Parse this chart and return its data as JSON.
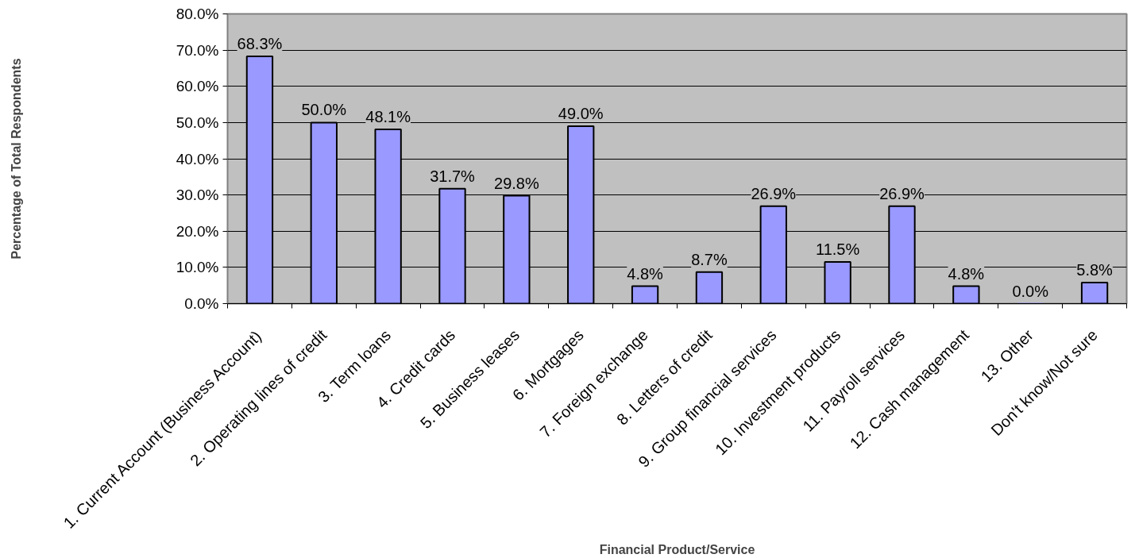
{
  "chart_data": {
    "type": "bar",
    "xlabel": "Financial Product/Service",
    "ylabel": "Percentage of Total Respondents",
    "categories": [
      "1. Current Account (Business Account)",
      "2. Operating lines of credit",
      "3. Term loans",
      "4. Credit cards",
      "5. Business leases",
      "6. Mortgages",
      "7. Foreign exchange",
      "8. Letters of credit",
      "9. Group financial services",
      "10. Investment products",
      "11. Payroll services",
      "12. Cash management",
      "13. Other",
      "Don't know/Not sure"
    ],
    "values": [
      68.3,
      50.0,
      48.1,
      31.7,
      29.8,
      49.0,
      4.8,
      8.7,
      26.9,
      11.5,
      26.9,
      4.8,
      0.0,
      5.8
    ],
    "value_labels": [
      "68.3%",
      "50.0%",
      "48.1%",
      "31.7%",
      "29.8%",
      "49.0%",
      "4.8%",
      "8.7%",
      "26.9%",
      "11.5%",
      "26.9%",
      "4.8%",
      "0.0%",
      "5.8%"
    ],
    "color": "#9999ff",
    "ylim": [
      0,
      80
    ],
    "yticks": [
      {
        "value": 0,
        "label": "0.0%"
      },
      {
        "value": 10,
        "label": "10.0%"
      },
      {
        "value": 20,
        "label": "20.0%"
      },
      {
        "value": 30,
        "label": "30.0%"
      },
      {
        "value": 40,
        "label": "40.0%"
      },
      {
        "value": 50,
        "label": "50.0%"
      },
      {
        "value": 60,
        "label": "60.0%"
      },
      {
        "value": 70,
        "label": "70.0%"
      },
      {
        "value": 80,
        "label": "80.0%"
      }
    ],
    "grid": "y"
  }
}
